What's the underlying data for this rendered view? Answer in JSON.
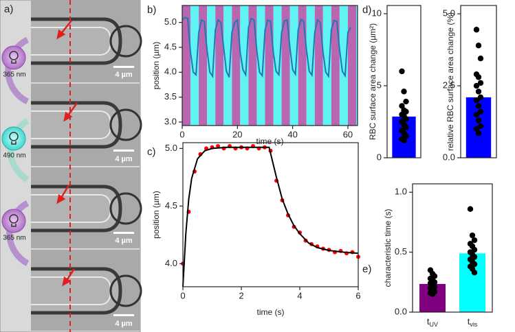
{
  "panel_a": {
    "label": "a)",
    "wavelengths": [
      "365 nm",
      "490 nm",
      "365 nm"
    ],
    "scale_bars": [
      "4 µm",
      "4 µm",
      "4 µm",
      "4 µm"
    ]
  },
  "chart_data": [
    {
      "type": "line",
      "panel_label": "b)",
      "xlabel": "time (s)",
      "ylabel": "position (µm)",
      "xlim": [
        0,
        63.5
      ],
      "ylim": [
        2.93,
        5.34
      ],
      "xticks": [
        0,
        20,
        40,
        60
      ],
      "yticks": [
        {
          "value": 3,
          "label": "3.0"
        },
        {
          "value": 3.5,
          "label": "3.5"
        },
        {
          "value": 4,
          "label": "4.0"
        },
        {
          "value": 4.5,
          "label": "4.5"
        },
        {
          "value": 5,
          "label": "5.0"
        }
      ],
      "bands": {
        "period": 6,
        "colors": [
          "#b866b0",
          "#5ff3f3"
        ]
      },
      "x": [
        0,
        1,
        2,
        3,
        4,
        5,
        6,
        7,
        8,
        9,
        10,
        11,
        12,
        13,
        14,
        15,
        16,
        17,
        18,
        19,
        20,
        21,
        22,
        23,
        24,
        25,
        26,
        27,
        28,
        29,
        30,
        31,
        32,
        33,
        34,
        35,
        36,
        37,
        38,
        39,
        40,
        41,
        42,
        43,
        44,
        45,
        46,
        47,
        48,
        49,
        50,
        51,
        52,
        53,
        54,
        55,
        56,
        57,
        58,
        59,
        60,
        61
      ],
      "series": [
        {
          "color": "#1f77b4",
          "values": [
            5.05,
            5.1,
            5.08,
            4.4,
            4.0,
            3.95,
            4.8,
            5.05,
            5.02,
            4.45,
            4.0,
            3.92,
            4.85,
            5.05,
            5.0,
            4.5,
            4.02,
            3.9,
            4.8,
            5.0,
            5.05,
            4.4,
            4.05,
            3.95,
            4.9,
            5.08,
            5.05,
            4.45,
            4.0,
            3.93,
            4.85,
            5.05,
            5.02,
            4.4,
            4.02,
            3.95,
            4.8,
            5.03,
            5.05,
            4.5,
            4.05,
            3.96,
            4.85,
            5.06,
            5.02,
            4.45,
            4.02,
            3.94,
            4.8,
            5.05,
            5.0,
            4.4,
            4.0,
            3.92,
            4.85,
            5.04,
            5.02,
            4.45,
            4.02,
            3.93,
            4.8,
            4.9
          ]
        }
      ]
    },
    {
      "type": "scatter",
      "panel_label": "c)",
      "xlabel": "time (s)",
      "ylabel": "position (µm)",
      "xlim": [
        0,
        6
      ],
      "ylim": [
        3.8,
        5.05
      ],
      "xticks": [
        0,
        2,
        4,
        6
      ],
      "yticks": [
        {
          "value": 4,
          "label": "4.0"
        },
        {
          "value": 4.5,
          "label": "4.5"
        },
        {
          "value": 5,
          "label": "5.0"
        }
      ],
      "series": [
        {
          "style": "points",
          "color": "#ff0000",
          "x": [
            0,
            0.2,
            0.4,
            0.6,
            0.8,
            1.0,
            1.2,
            1.4,
            1.6,
            1.8,
            2.0,
            2.2,
            2.4,
            2.6,
            2.8,
            3.0,
            3.2,
            3.4,
            3.6,
            3.8,
            4.0,
            4.2,
            4.4,
            4.6,
            4.8,
            5.0,
            5.2,
            5.4,
            5.6,
            5.8,
            6.0
          ],
          "values": [
            4.0,
            4.45,
            4.8,
            4.95,
            5.0,
            5.01,
            5.02,
            5.0,
            5.02,
            5.0,
            5.01,
            5.0,
            5.02,
            5.0,
            5.01,
            4.98,
            4.72,
            4.55,
            4.42,
            4.32,
            4.27,
            4.2,
            4.17,
            4.15,
            4.13,
            4.12,
            4.1,
            4.11,
            4.09,
            4.1,
            4.06
          ]
        },
        {
          "style": "line",
          "color": "#000000",
          "x": [
            0,
            0.1,
            0.2,
            0.3,
            0.5,
            0.75,
            1,
            1.5,
            2,
            2.5,
            2.95,
            3.2,
            3.4,
            3.6,
            3.8,
            4.0,
            4.3,
            4.6,
            5,
            5.5,
            6
          ],
          "values": [
            3.8,
            4.26,
            4.56,
            4.74,
            4.91,
            4.98,
            5.0,
            5.01,
            5.01,
            5.01,
            5.01,
            4.75,
            4.56,
            4.43,
            4.33,
            4.26,
            4.18,
            4.14,
            4.115,
            4.1,
            4.09
          ]
        }
      ]
    },
    {
      "type": "bar",
      "panel_label": "d)",
      "ylabel": "RBC surface area change (µm²)",
      "ylim": [
        0,
        10.57
      ],
      "yticks": [
        0,
        5,
        10
      ],
      "categories": [
        null
      ],
      "values": [
        2.86
      ],
      "colors": [
        "#0000ff"
      ],
      "points": [
        [
          6.0,
          4.6,
          3.9,
          3.6,
          3.3,
          3.2,
          3.0,
          2.9,
          2.7,
          2.5,
          2.3,
          2.1,
          1.9,
          1.7,
          1.5,
          1.3,
          1.2
        ]
      ]
    },
    {
      "type": "bar",
      "ylabel": "relative RBC surface area change (%)",
      "ylim": [
        0,
        5.29
      ],
      "yticks": [
        {
          "value": 0,
          "label": "0.0"
        },
        {
          "value": 2.5,
          "label": "2.5"
        },
        {
          "value": 5,
          "label": "5.0"
        }
      ],
      "categories": [
        null
      ],
      "values": [
        2.1
      ],
      "colors": [
        "#0000ff"
      ],
      "points": [
        [
          4.45,
          3.9,
          3.45,
          2.9,
          2.8,
          2.6,
          2.5,
          2.3,
          2.1,
          2.0,
          1.8,
          1.6,
          1.5,
          1.3,
          1.1,
          1.0,
          0.85
        ]
      ]
    },
    {
      "type": "bar",
      "panel_label": "e)",
      "ylabel": "characteristic time (s)",
      "ylim": [
        0,
        1.07
      ],
      "yticks": [
        {
          "value": 0,
          "label": "0.0"
        },
        {
          "value": 0.5,
          "label": "0.5"
        },
        {
          "value": 1,
          "label": "1.0"
        }
      ],
      "categories": [
        "tUV",
        "tvis"
      ],
      "values": [
        0.235,
        0.49
      ],
      "colors": [
        "#800080",
        "#00ffff"
      ],
      "points": [
        [
          0.35,
          0.32,
          0.3,
          0.28,
          0.27,
          0.25,
          0.24,
          0.22,
          0.21,
          0.2,
          0.18,
          0.17,
          0.16,
          0.15
        ],
        [
          0.86,
          0.64,
          0.6,
          0.57,
          0.55,
          0.52,
          0.5,
          0.48,
          0.46,
          0.44,
          0.42,
          0.4,
          0.38,
          0.36,
          0.33
        ]
      ]
    }
  ]
}
